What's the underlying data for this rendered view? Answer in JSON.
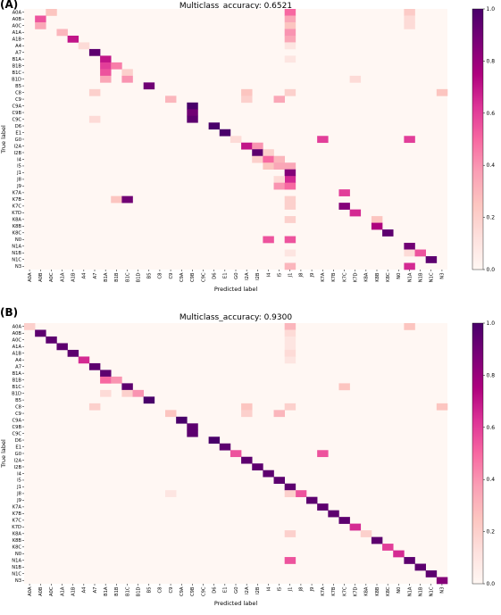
{
  "chart_data": [
    {
      "type": "heatmap",
      "panel": "(A)",
      "title": "Multiclass_accuracy: 0.6521",
      "xlabel": "Predicted label",
      "ylabel": "True label",
      "labels": [
        "A0A",
        "A0B",
        "A0C",
        "A1A",
        "A1B",
        "A4",
        "A7",
        "B1A",
        "B1B",
        "B1C",
        "B1D",
        "B5",
        "C8",
        "C9",
        "C9A",
        "C9B",
        "C9C",
        "D6",
        "E1",
        "G0",
        "I2A",
        "I2B",
        "I4",
        "I5",
        "J1",
        "J8",
        "J9",
        "K7A",
        "K7B",
        "K7C",
        "K7D",
        "K8A",
        "K8B",
        "K8C",
        "N0",
        "N1A",
        "N1B",
        "N1C",
        "N3"
      ],
      "colorbar": {
        "min": 0.0,
        "max": 1.0,
        "ticks": [
          "0.0",
          "0.2",
          "0.4",
          "0.6",
          "0.8",
          "1.0"
        ]
      },
      "colormap": [
        "#fff7f3",
        "#fde0dd",
        "#fcc5c0",
        "#fa9fb5",
        "#f768a1",
        "#dd3497",
        "#ae017e",
        "#7a0177",
        "#49006a"
      ],
      "cells": [
        [
          0,
          2,
          0.25
        ],
        [
          0,
          24,
          0.5
        ],
        [
          0,
          35,
          0.22
        ],
        [
          1,
          1,
          0.55
        ],
        [
          1,
          24,
          0.35
        ],
        [
          1,
          35,
          0.15
        ],
        [
          2,
          1,
          0.35
        ],
        [
          2,
          24,
          0.25
        ],
        [
          2,
          35,
          0.15
        ],
        [
          3,
          3,
          0.3
        ],
        [
          3,
          24,
          0.4
        ],
        [
          4,
          4,
          0.7
        ],
        [
          4,
          24,
          0.35
        ],
        [
          5,
          5,
          0.15
        ],
        [
          5,
          24,
          0.1
        ],
        [
          6,
          6,
          0.95
        ],
        [
          7,
          7,
          0.7
        ],
        [
          7,
          24,
          0.1
        ],
        [
          8,
          7,
          0.6
        ],
        [
          8,
          8,
          0.45
        ],
        [
          9,
          7,
          0.55
        ],
        [
          9,
          9,
          0.2
        ],
        [
          10,
          7,
          0.35
        ],
        [
          10,
          9,
          0.4
        ],
        [
          10,
          30,
          0.15
        ],
        [
          11,
          11,
          0.9
        ],
        [
          12,
          6,
          0.2
        ],
        [
          12,
          20,
          0.25
        ],
        [
          12,
          24,
          0.2
        ],
        [
          12,
          38,
          0.25
        ],
        [
          13,
          13,
          0.3
        ],
        [
          13,
          20,
          0.2
        ],
        [
          13,
          23,
          0.35
        ],
        [
          14,
          15,
          1.0
        ],
        [
          15,
          15,
          0.9
        ],
        [
          16,
          6,
          0.15
        ],
        [
          16,
          15,
          0.95
        ],
        [
          17,
          17,
          1.0
        ],
        [
          18,
          18,
          1.0
        ],
        [
          19,
          19,
          0.15
        ],
        [
          19,
          27,
          0.6
        ],
        [
          19,
          35,
          0.6
        ],
        [
          20,
          20,
          0.7
        ],
        [
          20,
          21,
          0.4
        ],
        [
          21,
          21,
          0.95
        ],
        [
          21,
          22,
          0.2
        ],
        [
          22,
          21,
          0.2
        ],
        [
          22,
          22,
          0.5
        ],
        [
          22,
          23,
          0.3
        ],
        [
          23,
          22,
          0.25
        ],
        [
          23,
          23,
          0.35
        ],
        [
          23,
          24,
          0.35
        ],
        [
          24,
          24,
          0.85
        ],
        [
          25,
          24,
          0.65
        ],
        [
          25,
          23,
          0.15
        ],
        [
          26,
          23,
          0.4
        ],
        [
          26,
          24,
          0.5
        ],
        [
          27,
          29,
          0.6
        ],
        [
          28,
          8,
          0.25
        ],
        [
          28,
          9,
          0.9
        ],
        [
          28,
          24,
          0.2
        ],
        [
          29,
          24,
          0.2
        ],
        [
          29,
          29,
          0.85
        ],
        [
          30,
          30,
          0.65
        ],
        [
          31,
          24,
          0.2
        ],
        [
          31,
          32,
          0.25
        ],
        [
          32,
          32,
          0.75
        ],
        [
          33,
          33,
          0.95
        ],
        [
          34,
          22,
          0.55
        ],
        [
          34,
          24,
          0.55
        ],
        [
          35,
          35,
          0.9
        ],
        [
          36,
          35,
          0.15
        ],
        [
          36,
          36,
          0.55
        ],
        [
          36,
          24,
          0.1
        ],
        [
          37,
          37,
          0.95
        ],
        [
          38,
          24,
          0.3
        ],
        [
          38,
          35,
          0.65
        ]
      ]
    },
    {
      "type": "heatmap",
      "panel": "(B)",
      "title": "Multiclass_accuracy: 0.9300",
      "xlabel": "Predicted label",
      "ylabel": "True label",
      "labels": [
        "A0A",
        "A0B",
        "A0C",
        "A1A",
        "A1B",
        "A4",
        "A7",
        "B1A",
        "B1B",
        "B1C",
        "B1D",
        "B5",
        "C8",
        "C9",
        "C9A",
        "C9B",
        "C9C",
        "D6",
        "E1",
        "G0",
        "I2A",
        "I2B",
        "I4",
        "I5",
        "J1",
        "J8",
        "J9",
        "K7A",
        "K7B",
        "K7C",
        "K7D",
        "K8A",
        "K8B",
        "K8C",
        "N0",
        "N1A",
        "N1B",
        "N1C",
        "N3"
      ],
      "colorbar": {
        "min": 0.0,
        "max": 1.0,
        "ticks": [
          "0.0",
          "0.2",
          "0.4",
          "0.6",
          "0.8",
          "1.0"
        ]
      },
      "colormap": [
        "#fff7f3",
        "#fde0dd",
        "#fcc5c0",
        "#fa9fb5",
        "#f768a1",
        "#dd3497",
        "#ae017e",
        "#7a0177",
        "#49006a"
      ],
      "cells": [
        [
          0,
          0,
          0.2
        ],
        [
          0,
          24,
          0.3
        ],
        [
          0,
          35,
          0.25
        ],
        [
          1,
          1,
          0.95
        ],
        [
          1,
          24,
          0.15
        ],
        [
          2,
          2,
          0.95
        ],
        [
          2,
          24,
          0.1
        ],
        [
          3,
          3,
          0.95
        ],
        [
          3,
          24,
          0.1
        ],
        [
          4,
          4,
          0.95
        ],
        [
          4,
          24,
          0.15
        ],
        [
          5,
          5,
          0.65
        ],
        [
          5,
          24,
          0.1
        ],
        [
          6,
          6,
          0.95
        ],
        [
          7,
          7,
          0.95
        ],
        [
          8,
          7,
          0.5
        ],
        [
          8,
          8,
          0.4
        ],
        [
          9,
          9,
          0.95
        ],
        [
          9,
          29,
          0.25
        ],
        [
          10,
          7,
          0.15
        ],
        [
          10,
          9,
          0.2
        ],
        [
          10,
          10,
          0.4
        ],
        [
          11,
          11,
          1.0
        ],
        [
          12,
          6,
          0.2
        ],
        [
          12,
          20,
          0.25
        ],
        [
          12,
          24,
          0.2
        ],
        [
          12,
          38,
          0.25
        ],
        [
          13,
          13,
          0.25
        ],
        [
          13,
          20,
          0.2
        ],
        [
          13,
          23,
          0.3
        ],
        [
          14,
          14,
          1.0
        ],
        [
          15,
          15,
          0.95
        ],
        [
          16,
          15,
          0.95
        ],
        [
          17,
          17,
          1.0
        ],
        [
          18,
          18,
          0.95
        ],
        [
          19,
          19,
          0.55
        ],
        [
          19,
          27,
          0.55
        ],
        [
          20,
          20,
          0.95
        ],
        [
          21,
          21,
          0.95
        ],
        [
          22,
          22,
          0.95
        ],
        [
          23,
          23,
          0.95
        ],
        [
          24,
          24,
          0.95
        ],
        [
          25,
          25,
          0.55
        ],
        [
          25,
          24,
          0.2
        ],
        [
          25,
          13,
          0.1
        ],
        [
          26,
          26,
          0.95
        ],
        [
          27,
          27,
          0.95
        ],
        [
          28,
          28,
          0.95
        ],
        [
          29,
          29,
          0.95
        ],
        [
          30,
          30,
          0.65
        ],
        [
          31,
          24,
          0.2
        ],
        [
          31,
          31,
          0.2
        ],
        [
          32,
          32,
          0.95
        ],
        [
          33,
          33,
          0.6
        ],
        [
          34,
          34,
          0.65
        ],
        [
          35,
          24,
          0.55
        ],
        [
          35,
          35,
          0.95
        ],
        [
          36,
          36,
          0.95
        ],
        [
          37,
          37,
          0.95
        ],
        [
          38,
          38,
          0.85
        ]
      ]
    }
  ]
}
